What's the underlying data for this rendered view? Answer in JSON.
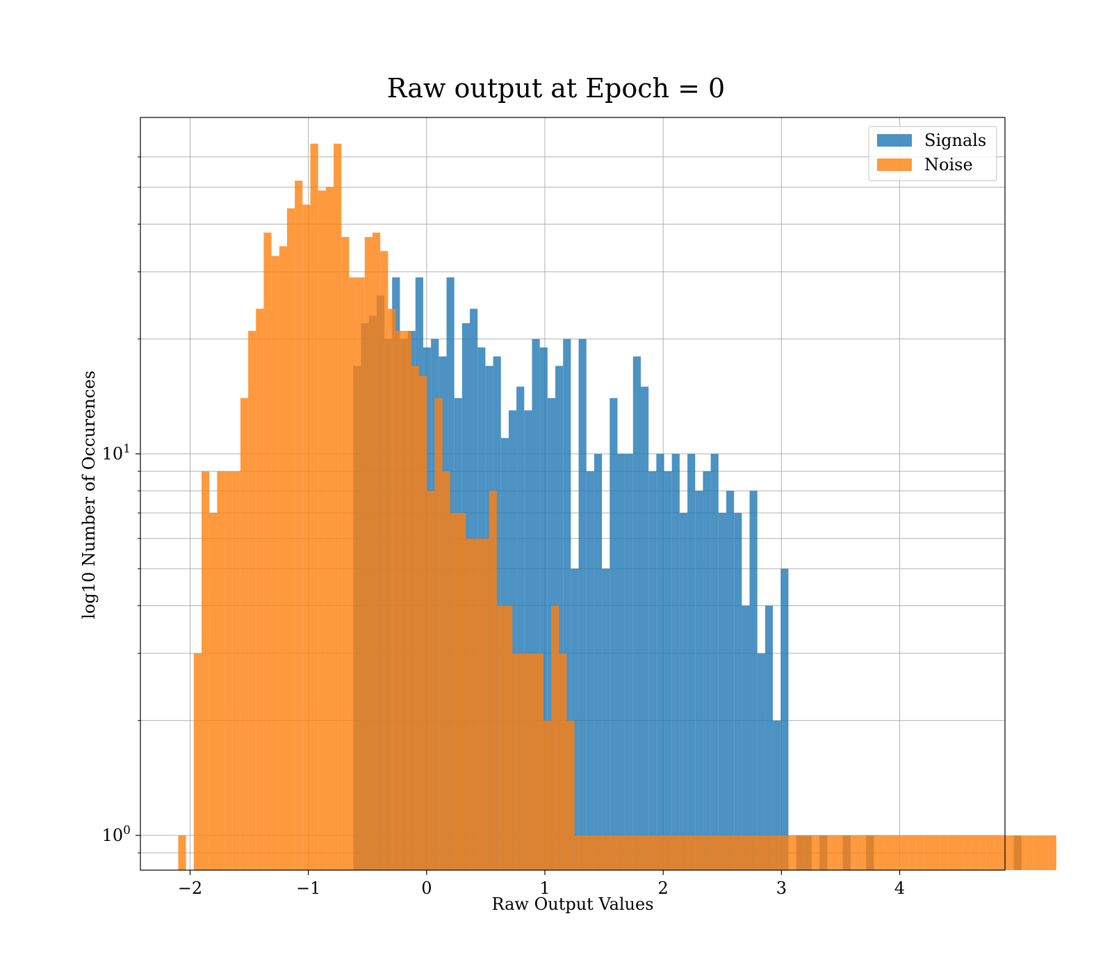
{
  "chart_data": {
    "type": "histogram",
    "title": "Raw output at Epoch = 0",
    "xlabel": "Raw Output Values",
    "ylabel": "log10 Number of Occurences",
    "xlim": [
      -2.42,
      4.89
    ],
    "ylim": [
      0.8,
      70
    ],
    "yscale": "log",
    "xticks": [
      -2,
      -1,
      0,
      1,
      2,
      3,
      4
    ],
    "xtick_labels": [
      "−2",
      "−1",
      "0",
      "1",
      "2",
      "3",
      "4"
    ],
    "ytick_labels": [
      {
        "value": 1,
        "base": "10",
        "exp": "0"
      },
      {
        "value": 10,
        "base": "10",
        "exp": "1"
      }
    ],
    "grid": true,
    "legend_position": "top-right",
    "colors": {
      "signals": "#1f77b4",
      "noise": "#ff7f0e"
    },
    "series": [
      {
        "name": "Signals",
        "color": "#1f77b4",
        "bin_start": -0.62,
        "bin_width": 0.0657,
        "values": [
          17,
          22,
          23,
          26,
          20,
          29,
          20,
          21,
          29,
          19,
          20,
          18,
          29,
          14,
          22,
          24,
          19,
          17,
          18,
          11,
          13,
          15,
          13,
          20,
          19,
          14,
          17,
          20,
          5,
          20,
          9,
          10,
          5,
          14,
          10,
          10,
          18,
          15,
          9,
          10,
          9,
          10,
          7,
          10,
          8,
          9,
          10,
          7,
          8,
          7,
          4,
          8,
          3,
          4,
          2,
          5,
          0,
          1,
          1,
          0,
          1,
          0,
          0,
          1,
          0,
          0,
          1,
          0,
          0,
          0,
          0,
          0,
          0,
          0,
          0,
          0,
          0,
          0,
          0,
          0,
          0,
          0,
          0,
          0,
          0,
          1
        ],
        "overlap": [
          0,
          0,
          0,
          0,
          0,
          2,
          4,
          6,
          7,
          6,
          6,
          6,
          7,
          6,
          8,
          2,
          1,
          3,
          3,
          3,
          4,
          3,
          4,
          1,
          2,
          1,
          1,
          0,
          1,
          0,
          1,
          1,
          1,
          1,
          1,
          1,
          1,
          0,
          1,
          0,
          1,
          1,
          1,
          1,
          1,
          1,
          1,
          1,
          0,
          1,
          0,
          1,
          1,
          1,
          1,
          1,
          0,
          0,
          0,
          0,
          0,
          0,
          0,
          0,
          0,
          0,
          0,
          0,
          0,
          0,
          0,
          0,
          0,
          0,
          0,
          0,
          0,
          0,
          0,
          0,
          0,
          0,
          0,
          0,
          0,
          0
        ],
        "note_overlap": "visible-only"
      },
      {
        "name": "Noise",
        "color": "#ff7f0e",
        "bin_start": -2.1,
        "bin_width": 0.0657,
        "values": [
          1,
          0,
          3,
          9,
          7,
          9,
          9,
          9,
          14,
          21,
          24,
          38,
          33,
          35,
          44,
          52,
          45,
          65,
          49,
          50,
          65,
          37,
          29,
          29,
          37,
          38,
          34,
          24,
          21,
          21,
          17,
          16,
          8,
          14,
          9,
          7,
          7,
          6,
          6,
          6,
          8,
          4,
          4,
          3,
          3,
          3,
          3,
          2,
          4,
          3,
          2,
          1,
          1,
          1,
          1,
          1,
          1,
          1,
          1,
          1,
          1,
          1,
          1,
          1,
          1,
          1,
          1,
          1,
          1,
          1,
          1,
          1,
          1,
          1,
          1,
          1,
          1,
          1,
          1,
          1,
          1,
          1,
          1,
          1,
          1,
          1,
          1,
          1,
          1,
          1,
          1,
          1,
          1,
          1,
          1,
          1,
          1,
          1,
          1,
          1,
          1,
          1,
          1,
          1,
          1,
          1,
          1,
          1,
          1,
          1,
          1,
          1,
          1
        ]
      }
    ]
  }
}
